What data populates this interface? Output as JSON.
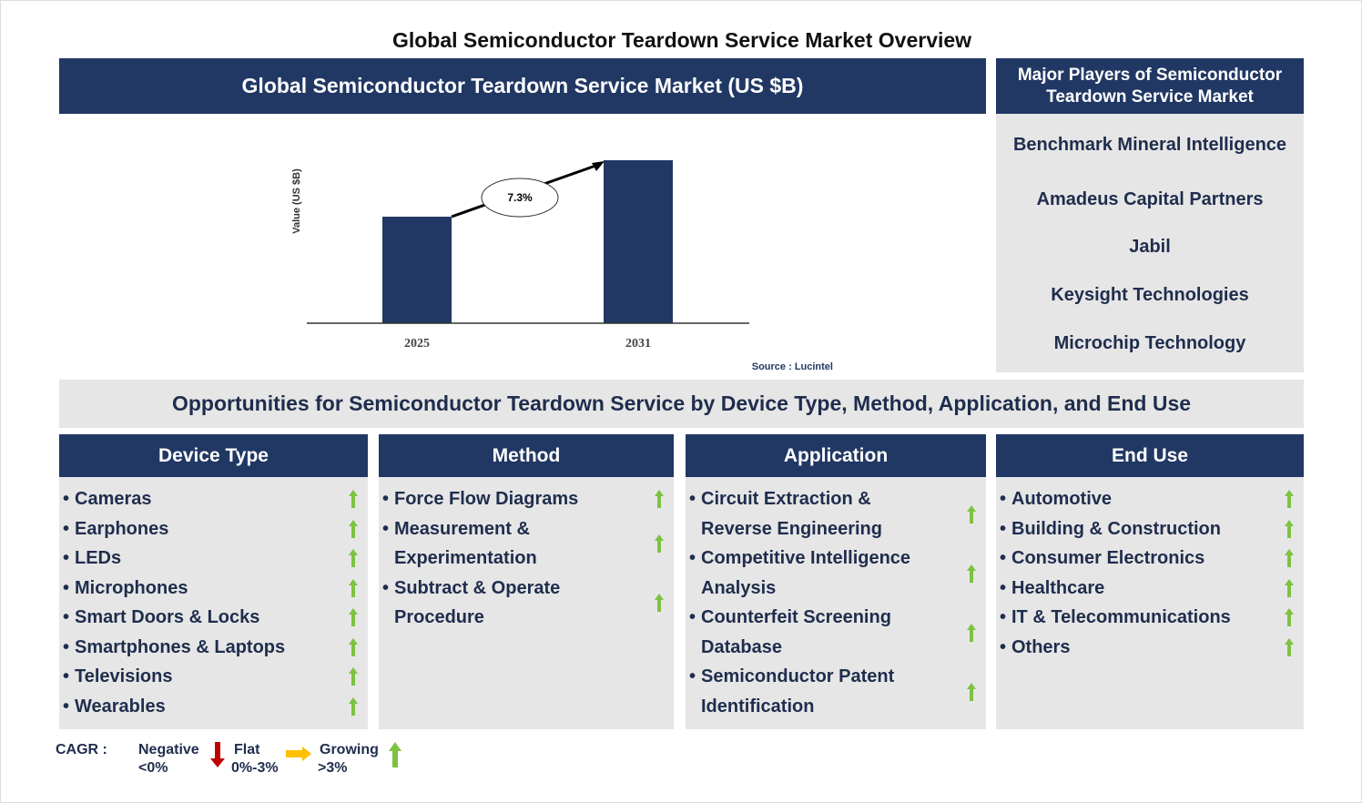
{
  "title": "Global Semiconductor Teardown Service Market Overview",
  "chart_header": "Global Semiconductor Teardown Service Market (US $B)",
  "chart_data": {
    "type": "bar",
    "categories": [
      "2025",
      "2031"
    ],
    "values": [
      1.0,
      1.53
    ],
    "ylabel": "Value (US $B)",
    "xlabel": "",
    "annotation": "7.3%",
    "source": "Source : Lucintel",
    "bar_color": "#213864"
  },
  "players": {
    "header": "Major Players of Semiconductor Teardown Service Market",
    "items": [
      "Benchmark Mineral Intelligence",
      "Amadeus Capital Partners",
      "Jabil",
      "Keysight Technologies",
      "Microchip Technology"
    ]
  },
  "opportunities_title": "Opportunities for Semiconductor Teardown Service by Device Type, Method, Application, and End Use",
  "columns": [
    {
      "title": "Device Type",
      "items": [
        "Cameras",
        "Earphones",
        "LEDs",
        "Microphones",
        "Smart Doors & Locks",
        "Smartphones & Laptops",
        "Televisions",
        "Wearables"
      ]
    },
    {
      "title": "Method",
      "items": [
        "Force Flow Diagrams",
        "Measurement & Experimentation",
        "Subtract & Operate Procedure"
      ]
    },
    {
      "title": "Application",
      "items": [
        "Circuit Extraction & Reverse Engineering",
        "Competitive Intelligence Analysis",
        "Counterfeit Screening Database",
        "Semiconductor Patent Identification"
      ]
    },
    {
      "title": "End Use",
      "items": [
        "Automotive",
        "Building & Construction",
        "Consumer Electronics",
        "Healthcare",
        "IT & Telecommunications",
        "Others"
      ]
    }
  ],
  "legend": {
    "label": "CAGR :",
    "negative": "Negative",
    "negative_range": "<0%",
    "flat": "Flat",
    "flat_range": "0%-3%",
    "growing": "Growing",
    "growing_range": ">3%",
    "colors": {
      "negative": "#c00000",
      "flat": "#ffc000",
      "growing": "#7dc242"
    }
  }
}
